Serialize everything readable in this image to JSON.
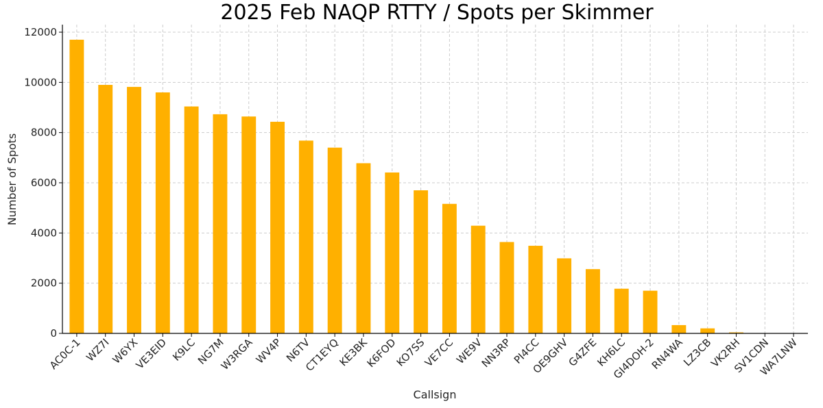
{
  "chart_data": {
    "type": "bar",
    "title": "2025 Feb NAQP RTTY / Spots per Skimmer",
    "xlabel": "Callsign",
    "ylabel": "Number of Spots",
    "ylim": [
      0,
      12300
    ],
    "yticks": [
      0,
      2000,
      4000,
      6000,
      8000,
      10000,
      12000
    ],
    "grid": true,
    "bar_color": "#FFB000",
    "categories": [
      "AC0C-1",
      "WZ7I",
      "W6YX",
      "VE3EID",
      "K9LC",
      "NG7M",
      "W3RGA",
      "WV4P",
      "N6TV",
      "CT1EYQ",
      "KE3BK",
      "K6FOD",
      "KO7SS",
      "VE7CC",
      "WE9V",
      "NN3RP",
      "PI4CC",
      "OE9GHV",
      "G4ZFE",
      "KH6LC",
      "GI4DOH-2",
      "RN4WA",
      "LZ3CB",
      "VK2RH",
      "SV1CDN",
      "WA7LNW"
    ],
    "values": [
      11700,
      9900,
      9820,
      9600,
      9040,
      8730,
      8640,
      8430,
      7680,
      7400,
      6780,
      6410,
      5700,
      5160,
      4290,
      3640,
      3490,
      2990,
      2560,
      1780,
      1700,
      330,
      200,
      40,
      5,
      3
    ]
  }
}
